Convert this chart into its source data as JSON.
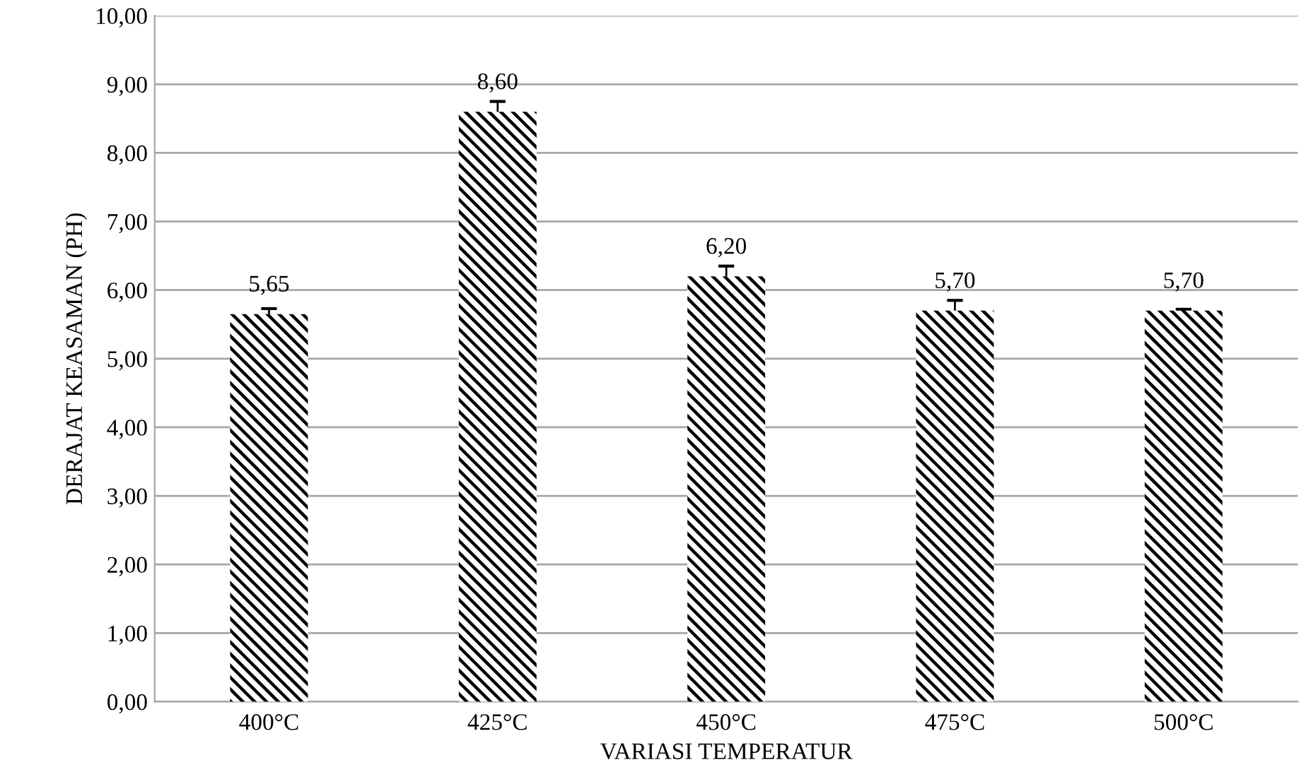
{
  "chart_data": {
    "type": "bar",
    "xlabel": "VARIASI TEMPERATUR",
    "ylabel": "DERAJAT KEASAMAN (PH)",
    "categories": [
      "400°C",
      "425°C",
      "450°C",
      "475°C",
      "500°C"
    ],
    "values": [
      5.65,
      8.6,
      6.2,
      5.7,
      5.7
    ],
    "errors": [
      0.08,
      0.15,
      0.15,
      0.15,
      0.02
    ],
    "value_labels": [
      "5,65",
      "8,60",
      "6,20",
      "5,70",
      "5,70"
    ],
    "color": "#000000",
    "ylim": [
      0,
      10
    ],
    "yticks": [
      {
        "value": 0,
        "label": "0,00"
      },
      {
        "value": 1,
        "label": "1,00"
      },
      {
        "value": 2,
        "label": "2,00"
      },
      {
        "value": 3,
        "label": "3,00"
      },
      {
        "value": 4,
        "label": "4,00"
      },
      {
        "value": 5,
        "label": "5,00"
      },
      {
        "value": 6,
        "label": "6,00"
      },
      {
        "value": 7,
        "label": "7,00"
      },
      {
        "value": 8,
        "label": "8,00"
      },
      {
        "value": 9,
        "label": "9,00"
      },
      {
        "value": 10,
        "label": "10,00"
      }
    ],
    "grid": "y"
  }
}
